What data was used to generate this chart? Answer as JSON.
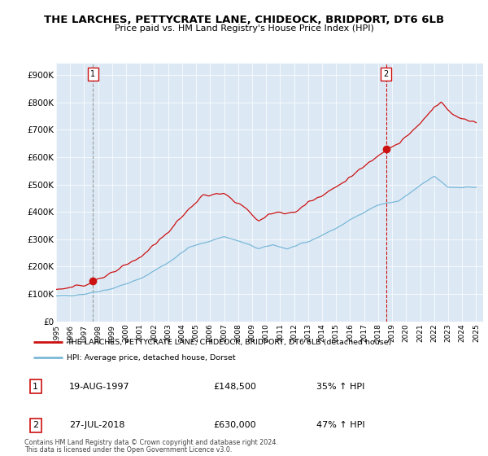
{
  "title": "THE LARCHES, PETTYCRATE LANE, CHIDEOCK, BRIDPORT, DT6 6LB",
  "subtitle": "Price paid vs. HM Land Registry's House Price Index (HPI)",
  "hpi_legend": "HPI: Average price, detached house, Dorset",
  "property_legend": "THE LARCHES, PETTYCRATE LANE, CHIDEOCK, BRIDPORT, DT6 6LB (detached house)",
  "note1": "Contains HM Land Registry data © Crown copyright and database right 2024.",
  "note2": "This data is licensed under the Open Government Licence v3.0.",
  "transaction1": {
    "num": "1",
    "date": "19-AUG-1997",
    "price": "£148,500",
    "hpi": "35% ↑ HPI"
  },
  "transaction2": {
    "num": "2",
    "date": "27-JUL-2018",
    "price": "£630,000",
    "hpi": "47% ↑ HPI"
  },
  "hpi_color": "#7ab8d8",
  "property_color": "#cc1111",
  "sale1_vline_color": "#999999",
  "sale2_vline_color": "#cc1111",
  "marker_color": "#cc1111",
  "ylim": [
    0,
    940000
  ],
  "yticks": [
    0,
    100000,
    200000,
    300000,
    400000,
    500000,
    600000,
    700000,
    800000,
    900000
  ],
  "ytick_labels": [
    "£0",
    "£100K",
    "£200K",
    "£300K",
    "£400K",
    "£500K",
    "£600K",
    "£700K",
    "£800K",
    "£900K"
  ],
  "sale1_x": 1997.63,
  "sale1_y": 148500,
  "sale2_x": 2018.56,
  "sale2_y": 630000,
  "xtick_years": [
    1995,
    1996,
    1997,
    1998,
    1999,
    2000,
    2001,
    2002,
    2003,
    2004,
    2005,
    2006,
    2007,
    2008,
    2009,
    2010,
    2011,
    2012,
    2013,
    2014,
    2015,
    2016,
    2017,
    2018,
    2019,
    2020,
    2021,
    2022,
    2023,
    2024,
    2025
  ],
  "bg_color": "#ffffff",
  "plot_bg_color": "#dce9f5",
  "grid_color": "#ffffff"
}
